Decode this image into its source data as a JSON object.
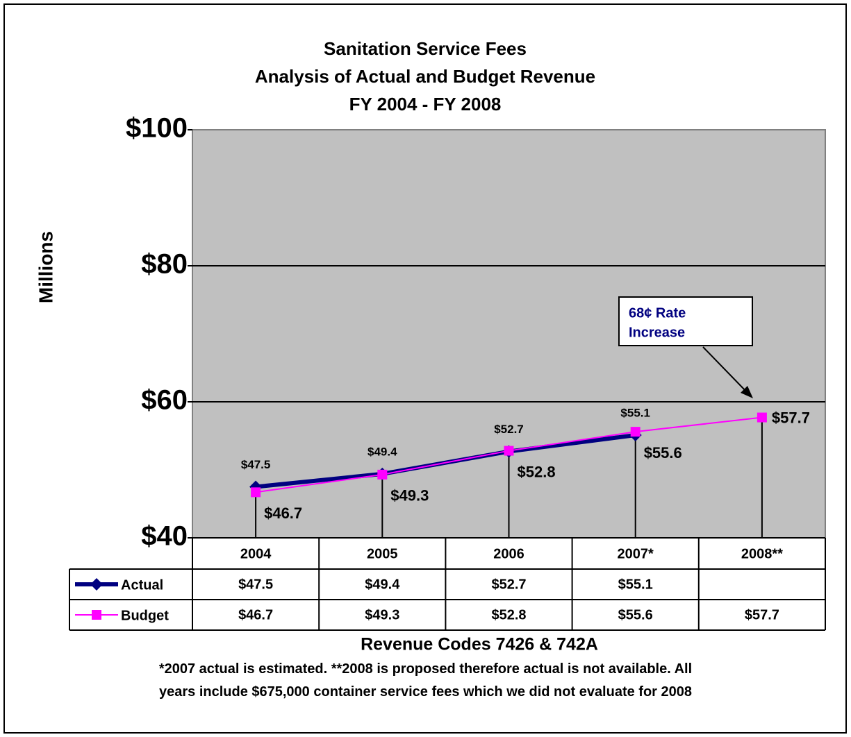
{
  "chart_data": {
    "type": "line",
    "title": "Sanitation Service Fees",
    "subtitle": [
      "Analysis of Actual and Budget Revenue",
      "FY 2004 - FY 2008"
    ],
    "y_axis_label": "Millions",
    "x_axis_label": "Revenue Codes 7426 & 742A",
    "categories": [
      "2004",
      "2005",
      "2006",
      "2007*",
      "2008**"
    ],
    "series": [
      {
        "name": "Actual",
        "color": "#000080",
        "values": [
          47.5,
          49.4,
          52.7,
          55.1,
          null
        ],
        "value_labels": [
          "$47.5",
          "$49.4",
          "$52.7",
          "$55.1",
          null
        ]
      },
      {
        "name": "Budget",
        "color": "#ff00ff",
        "values": [
          46.7,
          49.3,
          52.8,
          55.6,
          57.7
        ],
        "value_labels": [
          "$46.7",
          "$49.3",
          "$52.8",
          "$55.6",
          "$57.7"
        ]
      }
    ],
    "ylim": [
      40,
      100
    ],
    "yticks": [
      {
        "value": 40,
        "label": "$40"
      },
      {
        "value": 60,
        "label": "$60"
      },
      {
        "value": 80,
        "label": "$80"
      },
      {
        "value": 100,
        "label": "$100"
      }
    ],
    "grid": true,
    "annotation": [
      "68¢ Rate",
      "Increase"
    ],
    "footnote": "*2007 actual is estimated. **2008 is proposed therefore actual is not available.  All years include $675,000 container service fees which we did not evaluate for 2008"
  }
}
